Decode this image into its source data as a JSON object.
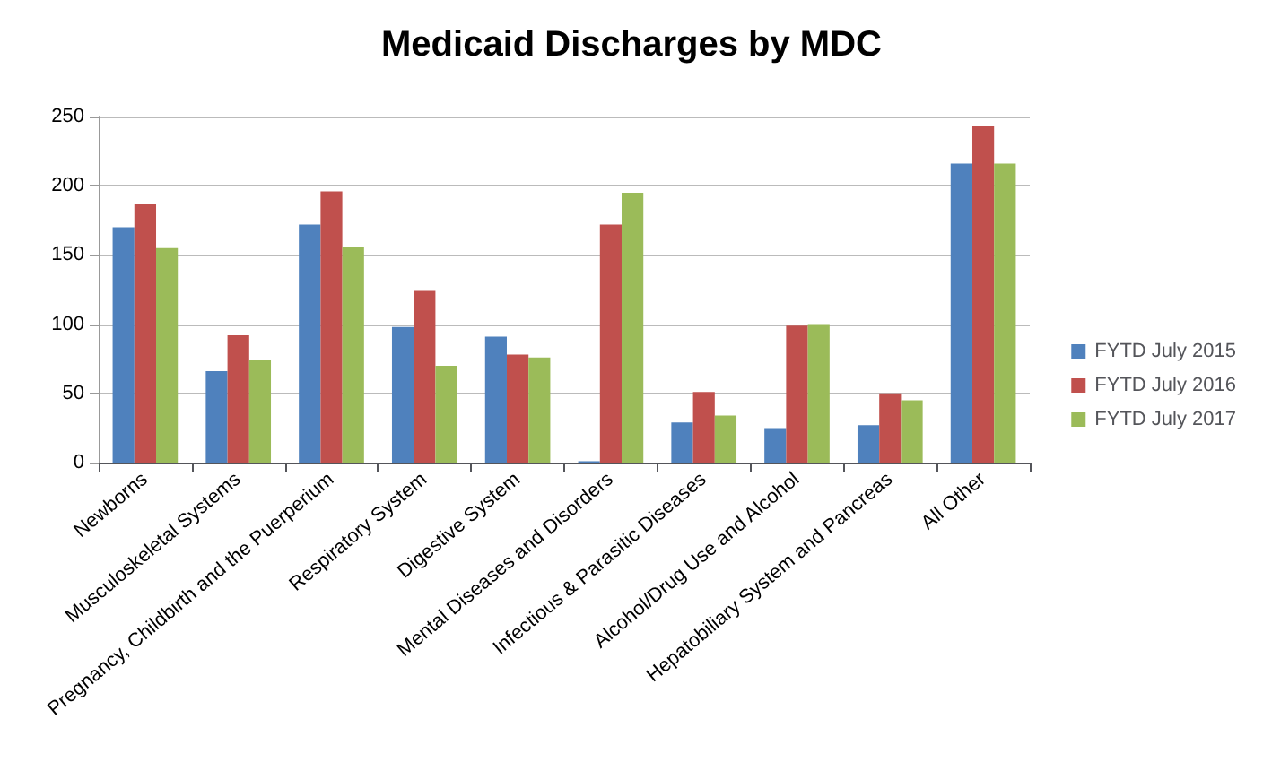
{
  "chart_data": {
    "type": "bar",
    "title": "Medicaid Discharges by MDC",
    "categories": [
      "Newborns",
      "Musculoskeletal Systems",
      "Pregnancy, Childbirth and the Puerperium",
      "Respiratory System",
      "Digestive System",
      "Mental Diseases and Disorders",
      "Infectious & Parasitic Diseases",
      "Alcohol/Drug Use and Alcohol",
      "Hepatobiliary System and Pancreas",
      "All Other"
    ],
    "series": [
      {
        "name": "FYTD July 2015",
        "color": "#4f81bd",
        "values": [
          170,
          66,
          172,
          98,
          91,
          1,
          29,
          25,
          27,
          216
        ]
      },
      {
        "name": "FYTD July 2016",
        "color": "#c0504d",
        "values": [
          187,
          92,
          196,
          124,
          78,
          172,
          51,
          99,
          50,
          243
        ]
      },
      {
        "name": "FYTD July 2017",
        "color": "#9bbb59",
        "values": [
          155,
          74,
          156,
          70,
          76,
          195,
          34,
          100,
          45,
          216
        ]
      }
    ],
    "ylim": [
      0,
      250
    ],
    "yticks": [
      0,
      50,
      100,
      150,
      200,
      250
    ],
    "grid": "y",
    "legend": "right"
  }
}
